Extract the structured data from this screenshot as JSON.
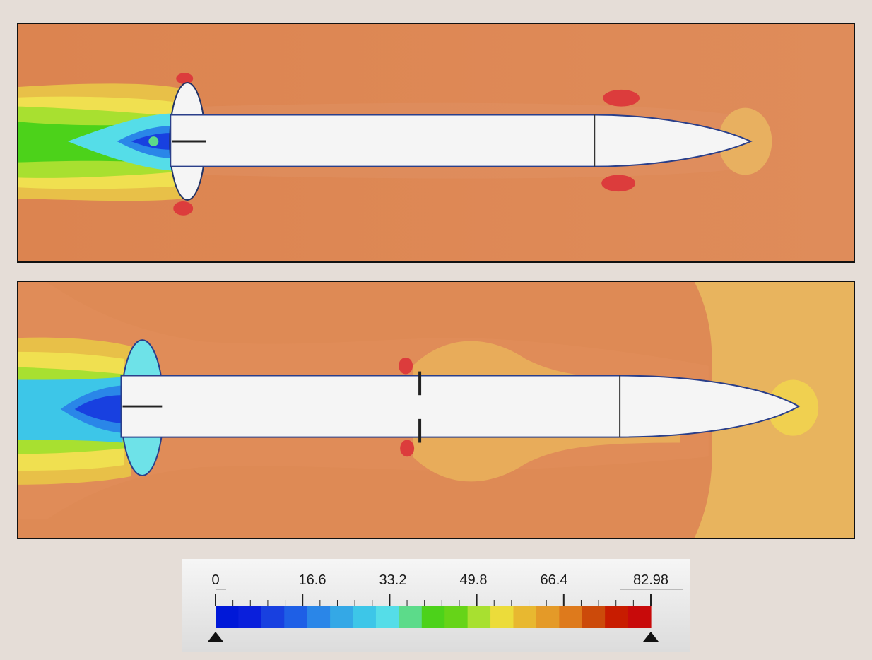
{
  "colorbar": {
    "tick_labels": [
      "0",
      "16.6",
      "33.2",
      "49.8",
      "66.4",
      "82.98"
    ],
    "min": 0,
    "max": 82.98,
    "colors": [
      "#0018d8",
      "#0a1fdc",
      "#1840e0",
      "#1e5fe6",
      "#2a86e8",
      "#34a8e6",
      "#3dc6e8",
      "#55dde8",
      "#5cdb8a",
      "#4cd21a",
      "#66d418",
      "#a8e030",
      "#ecdc3a",
      "#e8b830",
      "#e49a28",
      "#de7a1c",
      "#cc4a0a",
      "#c81c00",
      "#c80a0a"
    ]
  },
  "panels": [
    {
      "id": "top",
      "background": "#de8a55"
    },
    {
      "id": "bottom",
      "background": "#de8a55"
    }
  ]
}
